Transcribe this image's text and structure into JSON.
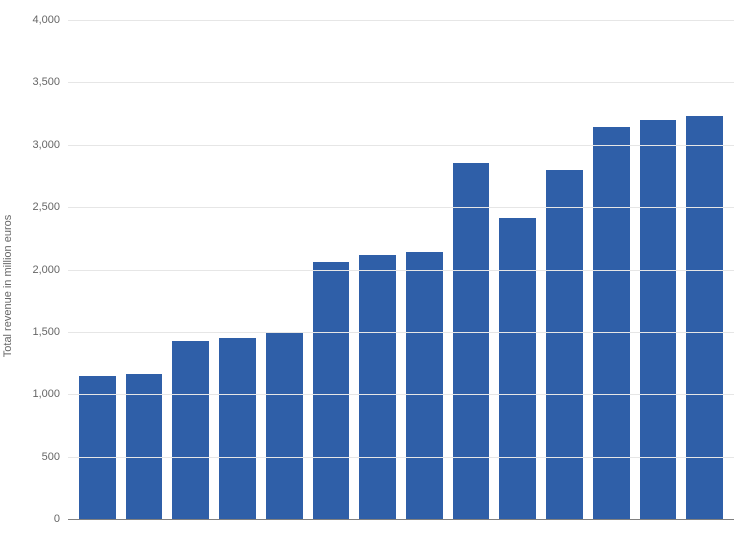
{
  "chart": {
    "type": "bar",
    "ylabel": "Total revenue in million euros",
    "label_fontsize": 11,
    "label_color": "#666666",
    "ylim": [
      0,
      4000
    ],
    "ytick_step": 500,
    "yticks": [
      {
        "value": 0,
        "label": "0"
      },
      {
        "value": 500,
        "label": "500"
      },
      {
        "value": 1000,
        "label": "1,000"
      },
      {
        "value": 1500,
        "label": "1,500"
      },
      {
        "value": 2000,
        "label": "2,000"
      },
      {
        "value": 2500,
        "label": "2,500"
      },
      {
        "value": 3000,
        "label": "3,000"
      },
      {
        "value": 3500,
        "label": "3,500"
      },
      {
        "value": 4000,
        "label": "4,000"
      }
    ],
    "values": [
      1150,
      1160,
      1430,
      1450,
      1500,
      2060,
      2120,
      2140,
      2850,
      2410,
      2800,
      3140,
      3200,
      3230
    ],
    "bar_color": "#2f5fa8",
    "background_color": "#ffffff",
    "grid_color": "#e6e6e6",
    "axis_color": "#808080",
    "bar_width": 0.72
  }
}
